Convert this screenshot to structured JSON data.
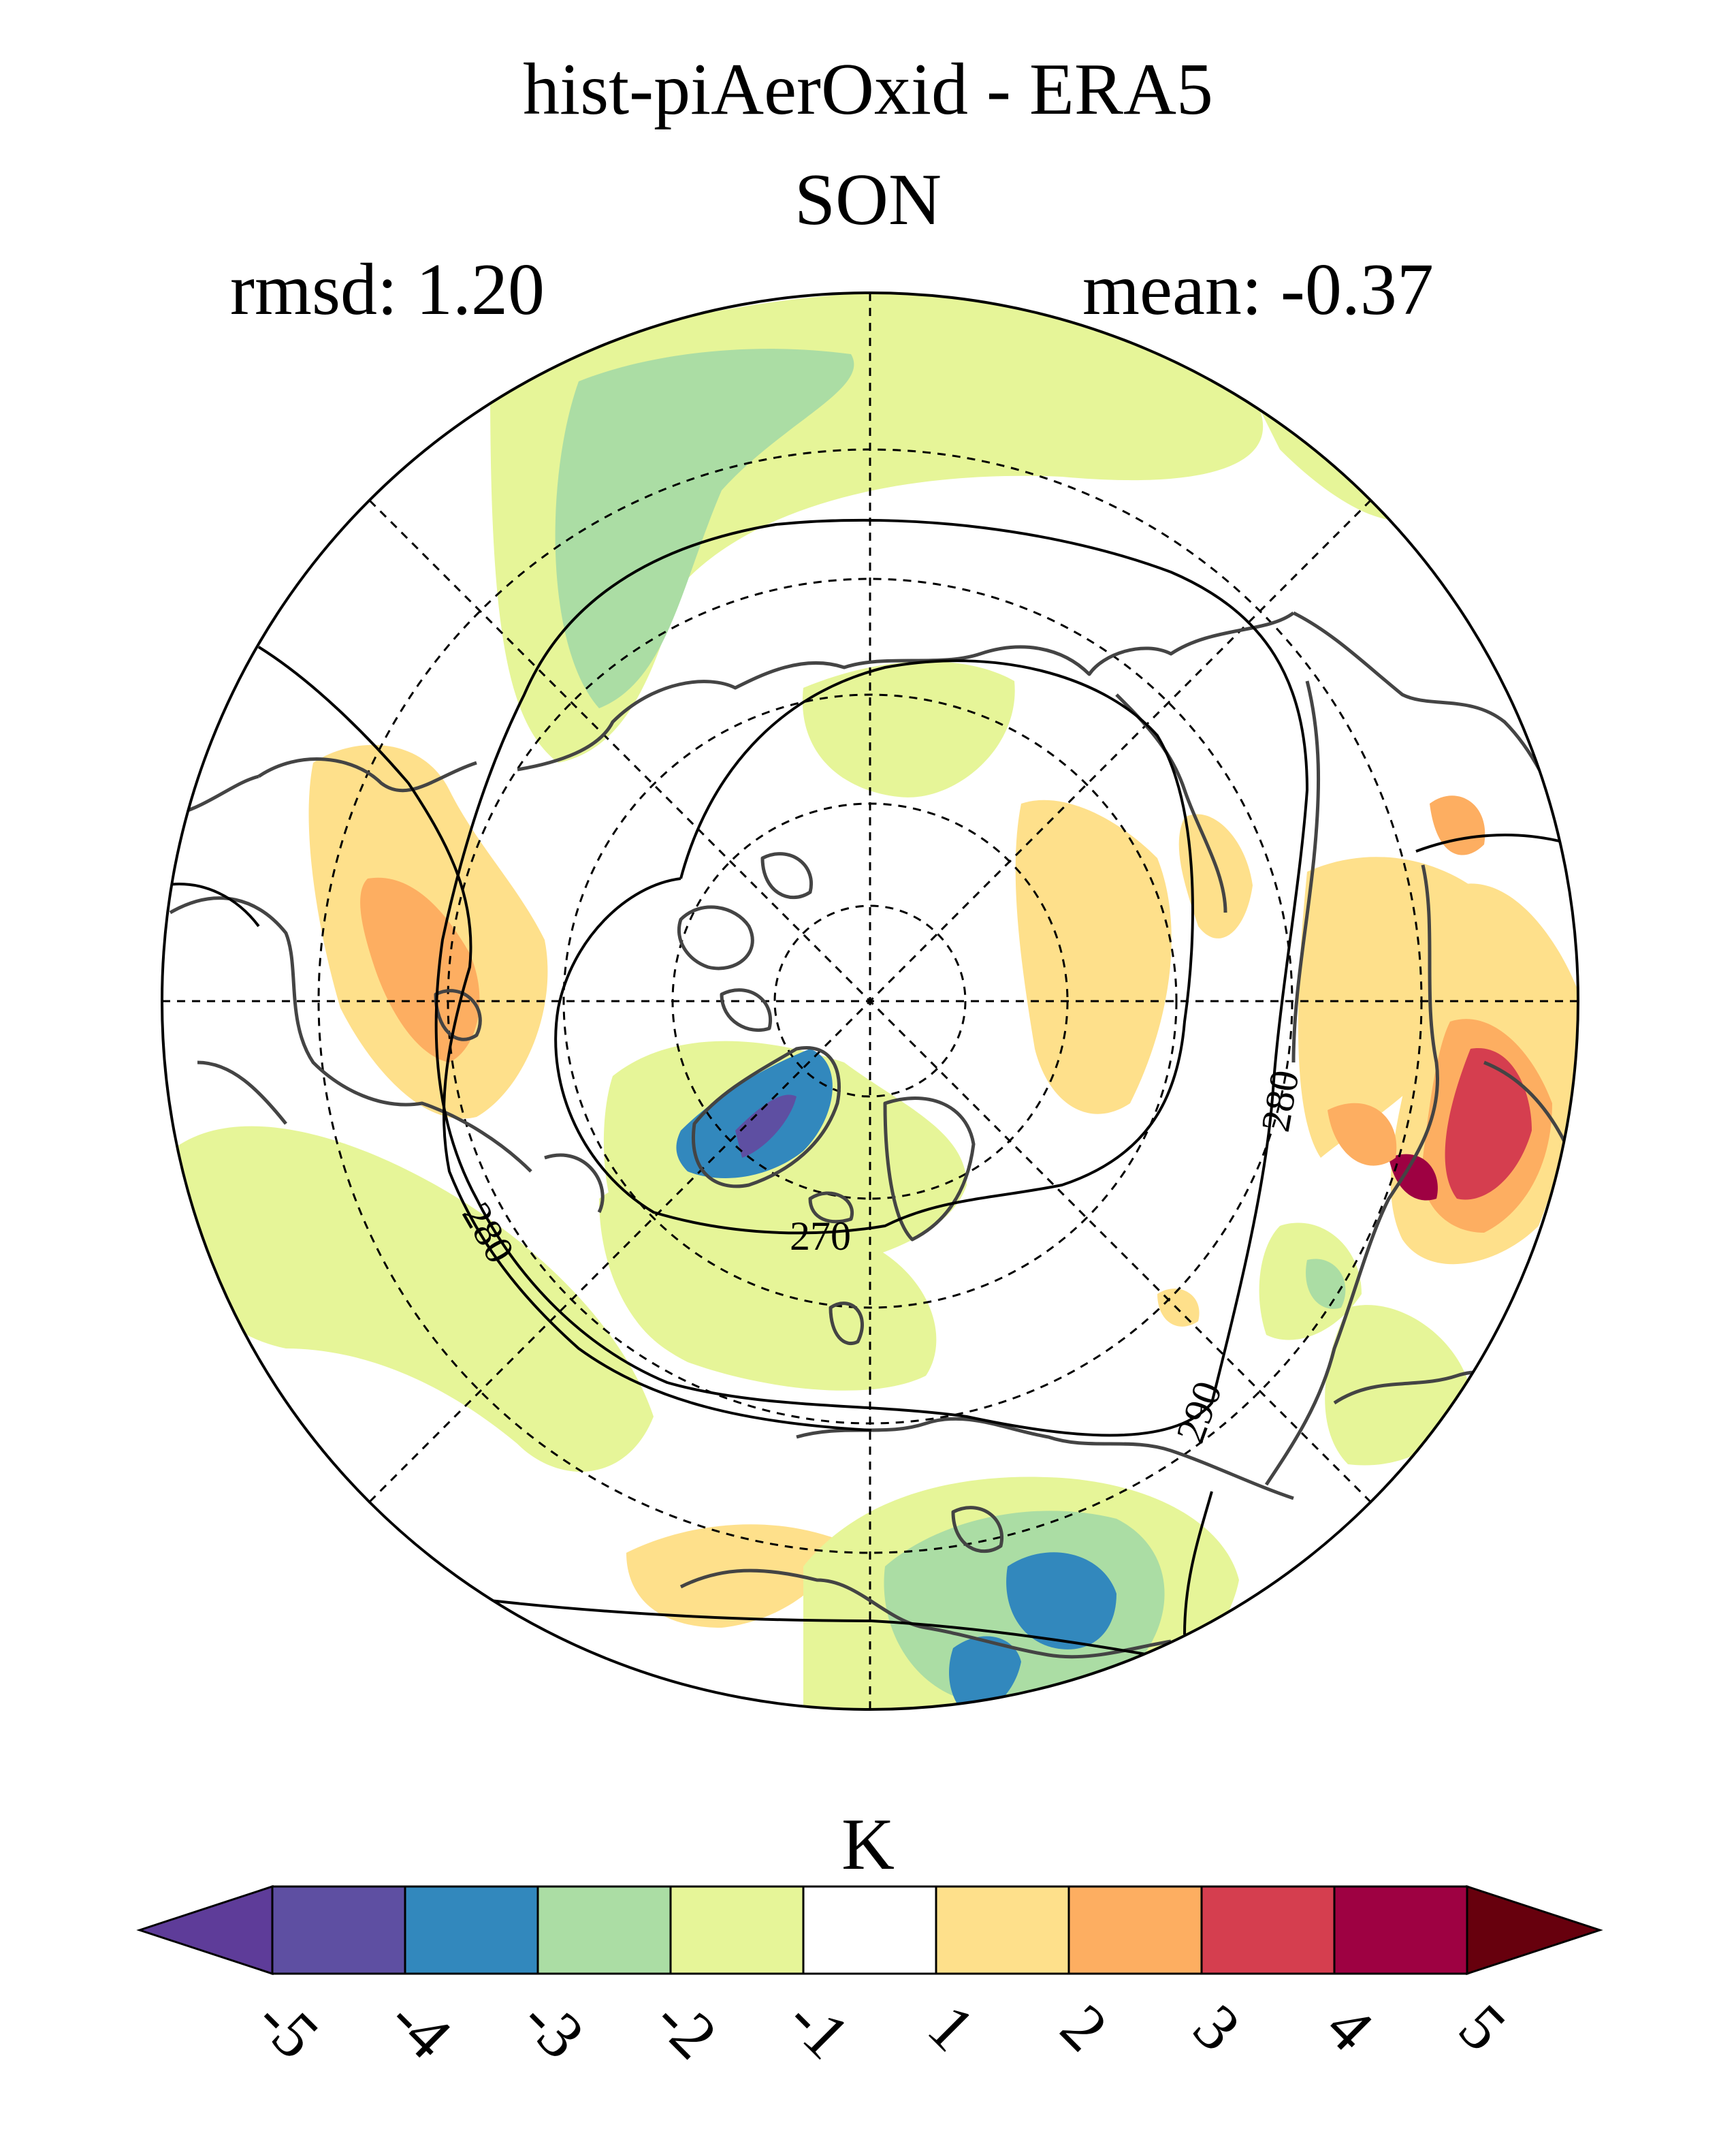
{
  "header": {
    "title": "hist-piAerOxid - ERA5",
    "season": "SON",
    "rmsd_label": "rmsd: 1.20",
    "mean_label": "mean: -0.37"
  },
  "map": {
    "projection": "north-polar-stereographic",
    "contour_labels": [
      "270",
      "280",
      "280",
      "280",
      "290"
    ]
  },
  "colorbar": {
    "unit": "K",
    "levels": [
      "-5",
      "-4",
      "-3",
      "-2",
      "-1",
      "1",
      "2",
      "3",
      "4",
      "5"
    ],
    "colors": [
      "#5e3c99",
      "#5e4fa2",
      "#3288bd",
      "#abdda4",
      "#e6f598",
      "#ffffff",
      "#fee08b",
      "#fdae61",
      "#d53e4f",
      "#9e0142",
      "#67000d"
    ]
  }
}
